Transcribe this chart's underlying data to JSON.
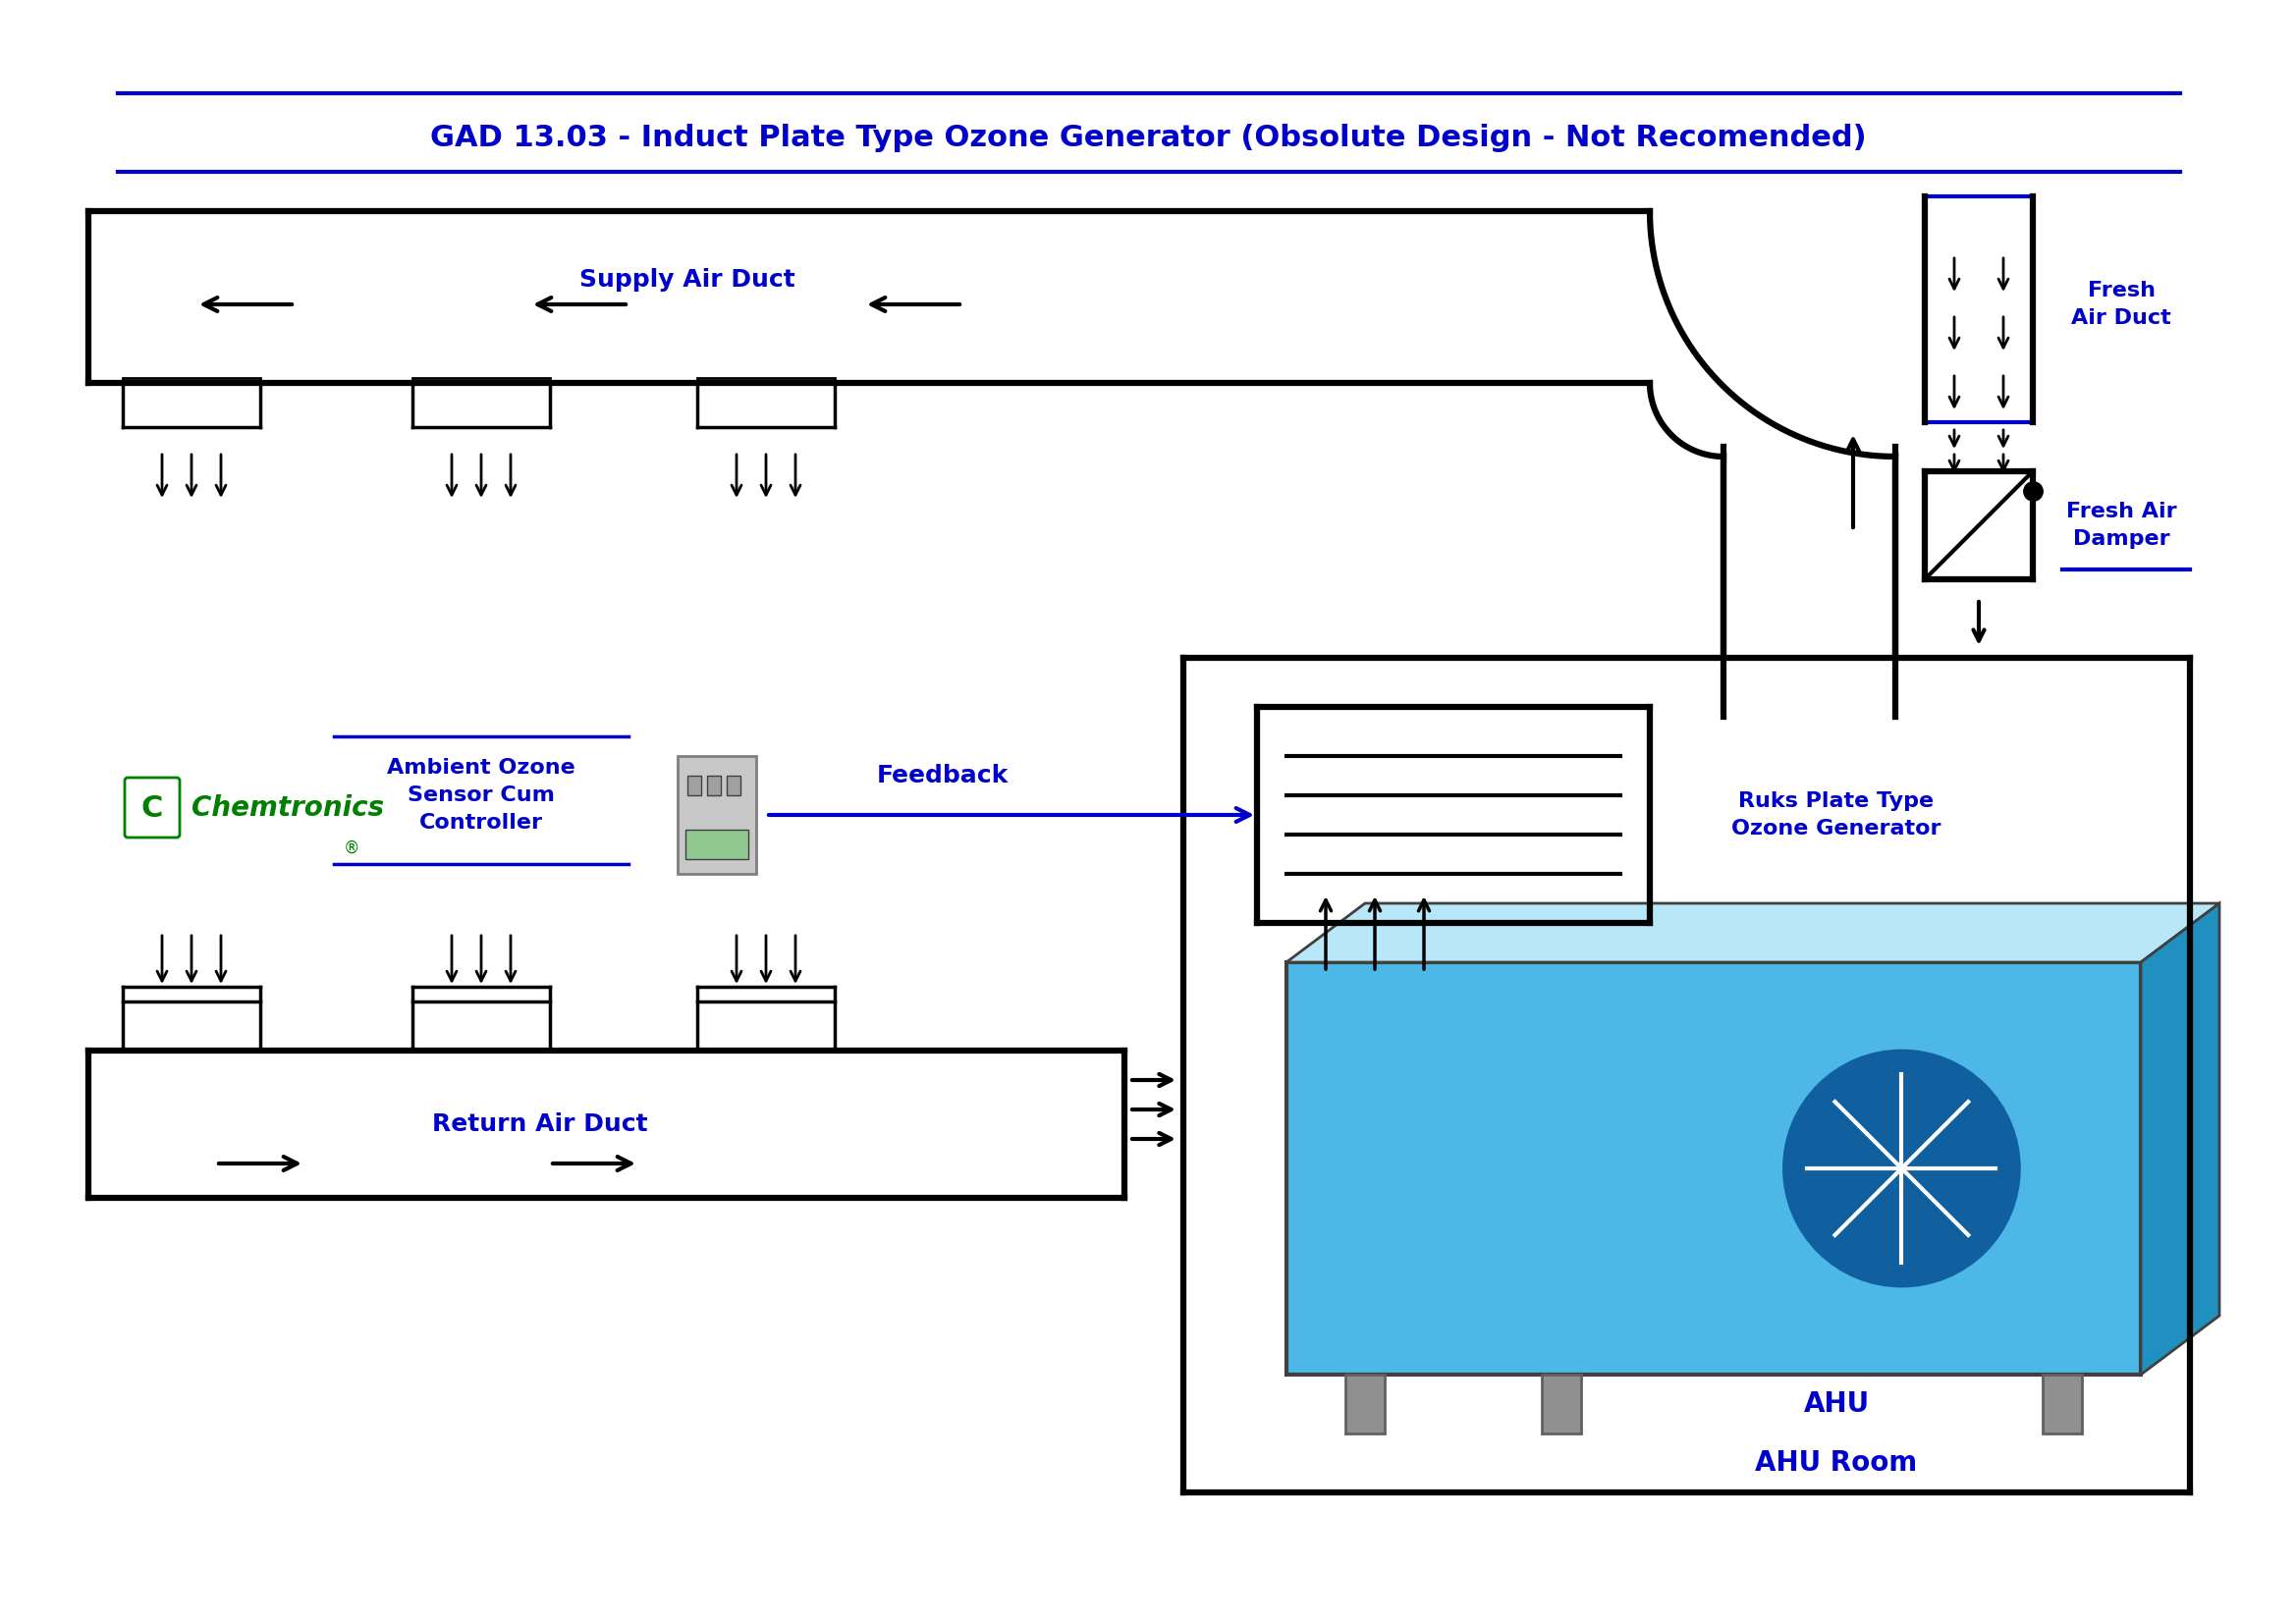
{
  "title": "GAD 13.03 - Induct Plate Type Ozone Generator (Obsolute Design - Not Recomended)",
  "title_color": "#0000CC",
  "title_fontsize": 22,
  "bg_color": "#FFFFFF",
  "blue": "#0000CC",
  "black": "#000000",
  "supply_duct_label": "Supply Air Duct",
  "return_duct_label": "Return Air Duct",
  "fresh_air_duct_label": "Fresh\nAir Duct",
  "fresh_air_damper_label": "Fresh Air\nDamper",
  "ambient_ozone_label": "Ambient Ozone\nSensor Cum\nController",
  "feedback_label": "Feedback",
  "ruks_label": "Ruks Plate Type\nOzone Generator",
  "ahu_label": "AHU",
  "ahu_room_label": "AHU Room",
  "chemtronics_green": "#008000",
  "chemtronics_blue": "#0000CC"
}
